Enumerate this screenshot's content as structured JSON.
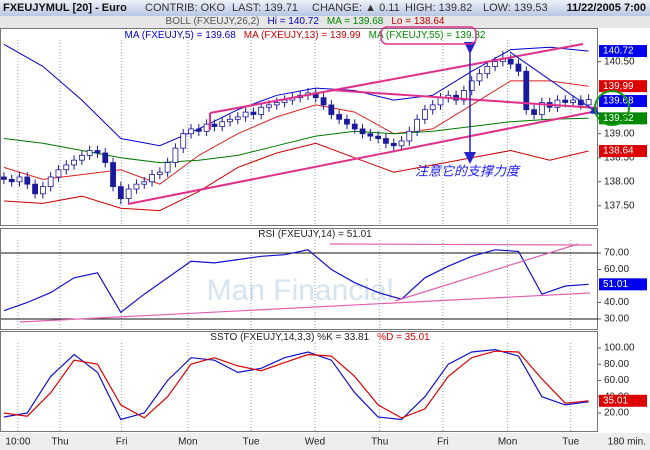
{
  "header": {
    "symbol": "FXEUJYMUL [20] - Euro",
    "contrib": "CONTRIB: OKO",
    "last": "LAST: 139.71",
    "change": "CHANGE: ▲ 0.11",
    "high": "HIGH: 139.82",
    "low": "LOW: 139.53",
    "date": "11/22/2005 7:00"
  },
  "annotation": "注意它的支撑力度",
  "watermark": "Man Financial",
  "chart_data": [
    {
      "type": "candlestick",
      "labels": [
        [
          {
            "text": "BOLL (FXEUJY,26,2)",
            "color": "#555555"
          },
          {
            "text": "Hi = 140.72",
            "color": "#0000cc"
          },
          {
            "text": "MA = 139.68",
            "color": "#008800"
          },
          {
            "text": "Lo = 138.64",
            "color": "#cc0000"
          }
        ],
        [
          {
            "text": "MA (FXEUJY,5) = 139.68",
            "color": "#0000cc"
          },
          {
            "text": "MA (FXEUJY,13) = 139.99",
            "color": "#cc0000"
          },
          {
            "text": "MA (FXEUJY,55) = 139.32",
            "color": "#008800"
          }
        ]
      ],
      "up_color": "#ffffff",
      "down_color": "#1a1a9c",
      "open": [
        138.1,
        138.05,
        138.0,
        138.1,
        137.95,
        137.75,
        137.9,
        138.1,
        138.25,
        138.35,
        138.45,
        138.55,
        138.65,
        138.6,
        138.4,
        137.9,
        137.65,
        137.85,
        137.95,
        138.0,
        138.15,
        138.2,
        138.4,
        138.7,
        139.0,
        139.1,
        139.05,
        139.2,
        139.15,
        139.25,
        139.3,
        139.35,
        139.45,
        139.4,
        139.55,
        139.6,
        139.65,
        139.7,
        139.75,
        139.8,
        139.85,
        139.75,
        139.6,
        139.4,
        139.3,
        139.2,
        139.1,
        139.0,
        138.95,
        138.9,
        138.8,
        138.75,
        138.85,
        139.05,
        139.3,
        139.5,
        139.6,
        139.75,
        139.8,
        139.7,
        139.9,
        140.1,
        140.25,
        140.4,
        140.5,
        140.55,
        140.45,
        140.3,
        139.5,
        139.4,
        139.65,
        139.55,
        139.7,
        139.65,
        139.7,
        139.6
      ],
      "high": [
        138.2,
        138.15,
        138.2,
        138.2,
        138.05,
        138.0,
        138.2,
        138.35,
        138.45,
        138.55,
        138.65,
        138.75,
        138.75,
        138.7,
        138.5,
        138.0,
        137.95,
        138.05,
        138.1,
        138.25,
        138.3,
        138.5,
        138.8,
        139.1,
        139.2,
        139.2,
        139.3,
        139.3,
        139.35,
        139.4,
        139.45,
        139.55,
        139.55,
        139.65,
        139.7,
        139.75,
        139.8,
        139.85,
        139.9,
        139.95,
        139.95,
        139.85,
        139.7,
        139.5,
        139.4,
        139.3,
        139.2,
        139.1,
        139.05,
        139.0,
        138.9,
        138.95,
        139.15,
        139.4,
        139.6,
        139.7,
        139.85,
        139.9,
        139.9,
        140.0,
        140.2,
        140.35,
        140.5,
        140.6,
        140.72,
        140.65,
        140.55,
        140.4,
        139.6,
        139.75,
        139.75,
        139.8,
        139.8,
        139.8,
        139.8,
        139.82
      ],
      "low": [
        137.95,
        137.9,
        137.9,
        137.85,
        137.65,
        137.65,
        137.8,
        138.0,
        138.15,
        138.25,
        138.35,
        138.45,
        138.5,
        138.3,
        137.8,
        137.53,
        137.55,
        137.75,
        137.85,
        137.9,
        138.05,
        138.1,
        138.3,
        138.6,
        138.9,
        138.95,
        138.95,
        139.05,
        139.05,
        139.15,
        139.2,
        139.25,
        139.3,
        139.3,
        139.45,
        139.5,
        139.55,
        139.6,
        139.65,
        139.7,
        139.65,
        139.5,
        139.3,
        139.2,
        139.1,
        139.0,
        138.9,
        138.85,
        138.8,
        138.7,
        138.65,
        138.65,
        138.75,
        138.95,
        139.2,
        139.4,
        139.5,
        139.65,
        139.6,
        139.6,
        139.8,
        140.0,
        140.15,
        140.3,
        140.4,
        140.35,
        140.2,
        139.4,
        139.3,
        139.3,
        139.45,
        139.45,
        139.55,
        139.55,
        139.5,
        139.53
      ],
      "close": [
        138.05,
        138.0,
        138.1,
        137.95,
        137.75,
        137.9,
        138.1,
        138.25,
        138.35,
        138.45,
        138.55,
        138.65,
        138.6,
        138.4,
        137.9,
        137.65,
        137.85,
        137.95,
        138.0,
        138.15,
        138.2,
        138.4,
        138.7,
        139.0,
        139.1,
        139.05,
        139.2,
        139.15,
        139.25,
        139.3,
        139.35,
        139.45,
        139.4,
        139.55,
        139.6,
        139.65,
        139.7,
        139.75,
        139.8,
        139.85,
        139.75,
        139.6,
        139.4,
        139.3,
        139.2,
        139.1,
        139.0,
        138.95,
        138.9,
        138.8,
        138.75,
        138.85,
        139.05,
        139.3,
        139.5,
        139.6,
        139.75,
        139.8,
        139.7,
        139.9,
        140.1,
        140.25,
        140.4,
        140.5,
        140.55,
        140.45,
        140.3,
        139.5,
        139.4,
        139.65,
        139.55,
        139.7,
        139.65,
        139.7,
        139.6,
        139.71
      ],
      "lines": [
        {
          "color": "#0000cc",
          "x": [
            0,
            5,
            10,
            15,
            20,
            25,
            30,
            35,
            40,
            45,
            50,
            55,
            60,
            65,
            70,
            75
          ],
          "values": [
            140.86,
            140.4,
            139.7,
            138.9,
            138.75,
            139.1,
            139.5,
            139.8,
            139.95,
            139.9,
            139.7,
            139.8,
            140.3,
            140.75,
            140.8,
            140.72
          ]
        },
        {
          "color": "#cc0000",
          "x": [
            0,
            5,
            10,
            15,
            20,
            25,
            30,
            35,
            40,
            45,
            50,
            55,
            60,
            65,
            70,
            75
          ],
          "values": [
            137.6,
            137.55,
            137.7,
            137.45,
            137.4,
            137.8,
            138.3,
            138.6,
            138.8,
            138.5,
            138.2,
            138.35,
            138.5,
            138.65,
            138.45,
            138.64
          ]
        },
        {
          "color": "#dd2222",
          "x": [
            0,
            5,
            10,
            15,
            20,
            25,
            30,
            35,
            40,
            45,
            50,
            55,
            60,
            65,
            70,
            75
          ],
          "values": [
            138.3,
            138.05,
            138.15,
            138.25,
            137.95,
            138.55,
            139.0,
            139.35,
            139.6,
            139.45,
            139.0,
            139.1,
            139.6,
            140.1,
            140.1,
            139.99
          ]
        },
        {
          "color": "#007700",
          "x": [
            0,
            5,
            10,
            15,
            20,
            25,
            30,
            35,
            40,
            45,
            50,
            55,
            60,
            65,
            70,
            75
          ],
          "values": [
            138.9,
            138.8,
            138.65,
            138.5,
            138.4,
            138.45,
            138.55,
            138.75,
            138.95,
            139.05,
            139.0,
            139.05,
            139.15,
            139.25,
            139.3,
            139.32
          ]
        }
      ],
      "markers": [
        {
          "value": 140.72,
          "color": "#0000ee"
        },
        {
          "value": 139.99,
          "color": "#dd0000"
        },
        {
          "value": 139.68,
          "color": "#0000ee"
        },
        {
          "value": 139.32,
          "color": "#008800"
        },
        {
          "value": 138.64,
          "color": "#dd0000"
        }
      ],
      "ylim": [
        137.08,
        141.2
      ],
      "yticks": [
        {
          "value": 140.5,
          "label": "140.50"
        },
        {
          "value": 139,
          "label": "139.00"
        },
        {
          "value": 138.5,
          "label": "138.50"
        },
        {
          "value": 138,
          "label": "138.00"
        },
        {
          "value": 137.5,
          "label": "137.50"
        }
      ]
    },
    {
      "type": "line",
      "labels": [
        [
          {
            "text": "RSI (FXEUJY,14) = 51.01",
            "color": "#222222"
          }
        ]
      ],
      "series": [
        {
          "color": "#1111cc",
          "x": [
            0,
            3,
            6,
            9,
            12,
            15,
            18,
            21,
            24,
            27,
            30,
            33,
            36,
            39,
            42,
            45,
            48,
            51,
            54,
            57,
            60,
            63,
            66,
            69,
            72,
            75
          ],
          "values": [
            35,
            40,
            46,
            55,
            58,
            34,
            45,
            55,
            65,
            64,
            66,
            68,
            69,
            72,
            60,
            52,
            46,
            42,
            55,
            62,
            68,
            72,
            71,
            45,
            50,
            51.01
          ]
        }
      ],
      "hlines": [
        70,
        30
      ],
      "markers": [
        {
          "value": 51.01,
          "color": "#0000ee"
        }
      ],
      "ylim": [
        23.3,
        85.2
      ],
      "yticks": [
        {
          "value": 70,
          "label": "70.00"
        },
        {
          "value": 60,
          "label": "60.00"
        },
        {
          "value": 40,
          "label": "40.00"
        },
        {
          "value": 30,
          "label": "30.00"
        }
      ]
    },
    {
      "type": "line",
      "labels": [
        [
          {
            "text": "SSTO (FXEUJY,14,3,3) %K = 33.81",
            "color": "#222222"
          },
          {
            "text": "%D = 35.01",
            "color": "#dd0000"
          }
        ]
      ],
      "series": [
        {
          "color": "#1111cc",
          "x": [
            0,
            3,
            6,
            9,
            12,
            15,
            18,
            21,
            24,
            27,
            30,
            33,
            36,
            39,
            42,
            45,
            48,
            51,
            54,
            57,
            60,
            63,
            66,
            69,
            72,
            75
          ],
          "values": [
            15,
            20,
            65,
            92,
            70,
            12,
            20,
            60,
            88,
            85,
            70,
            75,
            88,
            95,
            85,
            45,
            15,
            12,
            40,
            80,
            95,
            98,
            90,
            40,
            30,
            33.81
          ]
        },
        {
          "color": "#dd0000",
          "x": [
            0,
            3,
            6,
            9,
            12,
            15,
            18,
            21,
            24,
            27,
            30,
            33,
            36,
            39,
            42,
            45,
            48,
            51,
            54,
            57,
            60,
            63,
            66,
            69,
            72,
            75
          ],
          "values": [
            20,
            16,
            45,
            85,
            80,
            30,
            14,
            40,
            80,
            88,
            78,
            72,
            82,
            92,
            90,
            65,
            30,
            14,
            25,
            65,
            88,
            96,
            95,
            62,
            32,
            35.01
          ]
        }
      ],
      "markers": [
        {
          "value": 35.01,
          "color": "#dd0000"
        }
      ],
      "ylim": [
        -3.4,
        120.9
      ],
      "yticks": [
        {
          "value": 100,
          "label": "100.00"
        },
        {
          "value": 80,
          "label": "80.00"
        },
        {
          "value": 60,
          "label": "60.00"
        },
        {
          "value": 40,
          "label": "40.00"
        },
        {
          "value": 20,
          "label": "20.00"
        }
      ],
      "xlim": [
        -0.5,
        76.2
      ],
      "xticks": [
        {
          "value": 1.8,
          "label": "10:00"
        },
        {
          "value": 7.2,
          "label": "Thu"
        },
        {
          "value": 15.1,
          "label": "Fri"
        },
        {
          "value": 23.6,
          "label": "Mon"
        },
        {
          "value": 31.7,
          "label": "Tue"
        },
        {
          "value": 39.9,
          "label": "Wed"
        },
        {
          "value": 48.2,
          "label": "Thu"
        },
        {
          "value": 56.3,
          "label": "Fri"
        },
        {
          "value": 64.6,
          "label": "Mon"
        },
        {
          "value": 72.7,
          "label": "Tue"
        }
      ],
      "x_unit": "180 min."
    }
  ]
}
